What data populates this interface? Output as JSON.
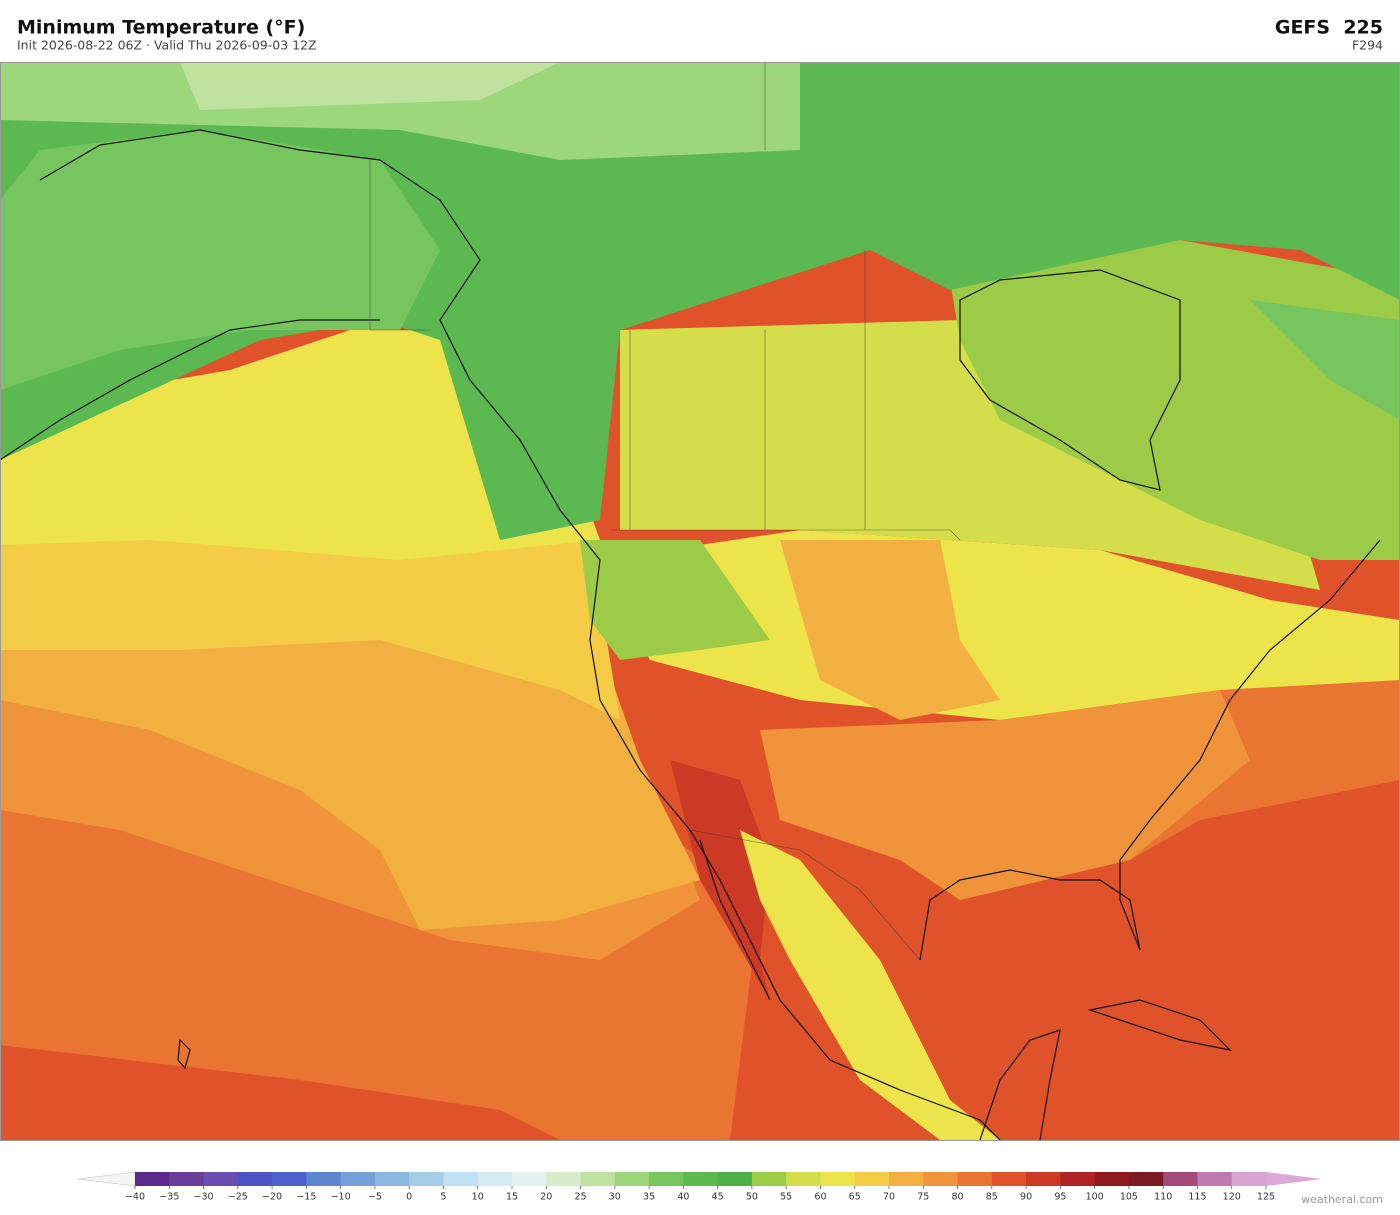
{
  "header": {
    "title": "Minimum Temperature  (°F)",
    "subtitle": "Init 2026-08-22 06Z  ·  Valid Thu 2026-09-03 12Z",
    "model": "GEFS  225",
    "forecast_hour": "F294"
  },
  "colorbar": {
    "ticks": [
      {
        "value": -40,
        "label": "−40"
      },
      {
        "value": -35,
        "label": "−35"
      },
      {
        "value": -30,
        "label": "−30"
      },
      {
        "value": -25,
        "label": "−25"
      },
      {
        "value": -20,
        "label": "−20"
      },
      {
        "value": -15,
        "label": "−15"
      },
      {
        "value": -10,
        "label": "−10"
      },
      {
        "value": -5,
        "label": "−5"
      },
      0,
      5,
      10,
      15,
      20,
      25,
      30,
      35,
      40,
      45,
      50,
      55,
      60,
      65,
      70,
      75,
      80,
      85,
      90,
      95,
      100,
      105,
      110,
      115,
      120,
      125
    ],
    "colors": [
      "#5b2a8c",
      "#6a3d9a",
      "#6b4fb0",
      "#4c52c0",
      "#4f62cc",
      "#5f84d0",
      "#74a0d8",
      "#8ab8e0",
      "#a4cde8",
      "#bfe0ee",
      "#d4ebf2",
      "#e2f2ee",
      "#d6eccb",
      "#bfe39f",
      "#9dd77c",
      "#77c55f",
      "#5cb850",
      "#4caf48",
      "#9ccb48",
      "#d4dd4a",
      "#ece44a",
      "#f4cc45",
      "#f2b040",
      "#ef943a",
      "#ea7432",
      "#e0532a",
      "#cc3a26",
      "#b02522",
      "#8f1a1e",
      "#7a1a22",
      "#a34a7a",
      "#c07ab0",
      "#d8a4d0"
    ],
    "extend_colors": [
      "#f4f4f4",
      "#dca8d8"
    ]
  },
  "watermark": "weatherai.com"
}
